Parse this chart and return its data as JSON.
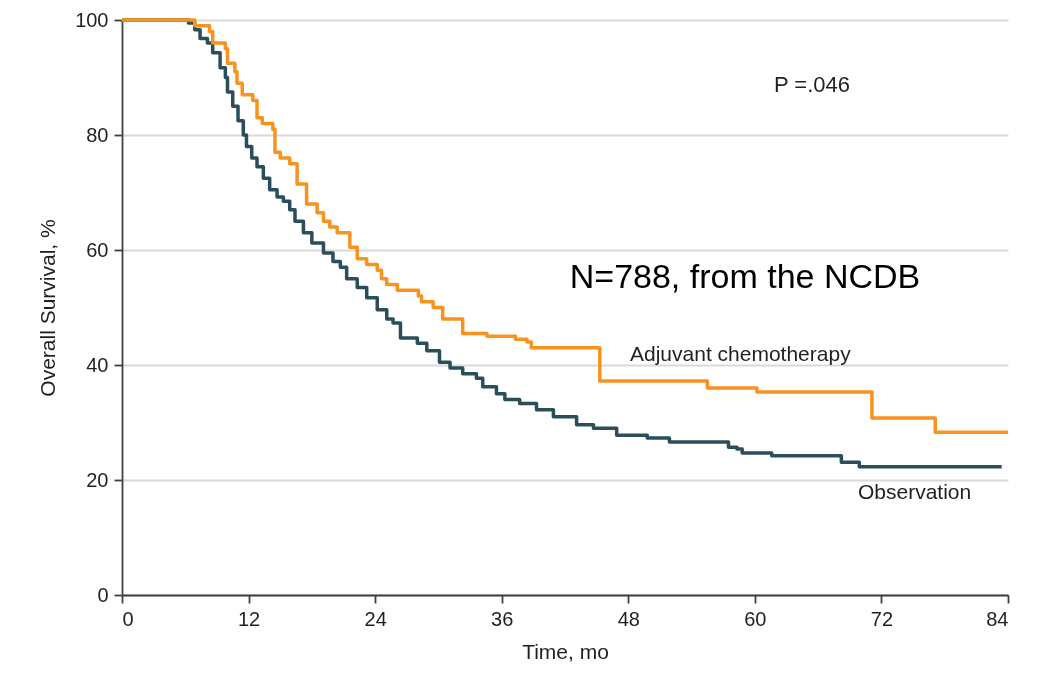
{
  "chart_data": {
    "type": "step",
    "xlabel": "Time, mo",
    "ylabel": "Overall Survival, %",
    "xlim": [
      0,
      84
    ],
    "xticks": [
      0,
      12,
      24,
      36,
      48,
      60,
      72,
      84
    ],
    "ylim": [
      0,
      100
    ],
    "yticks": [
      0,
      20,
      40,
      60,
      80,
      100
    ],
    "grid": "y",
    "annotations": [
      "P =.046",
      "N=788, from the NCDB"
    ],
    "series": [
      {
        "name": "Observation",
        "color": "#2b4f5a",
        "x": [
          0,
          6.3,
          6.9,
          7.4,
          8.1,
          8.6,
          9.3,
          9.8,
          10.0,
          10.5,
          11.0,
          11.5,
          11.8,
          12.3,
          12.8,
          13.4,
          14.0,
          14.7,
          15.3,
          15.9,
          16.4,
          17.2,
          18.0,
          19.1,
          20.0,
          20.7,
          21.3,
          22.3,
          23.2,
          24.2,
          25.1,
          25.7,
          26.4,
          28.0,
          28.9,
          30.1,
          31.1,
          32.3,
          33.6,
          34.2,
          35.5,
          36.3,
          37.7,
          39.3,
          40.9,
          43.1,
          44.7,
          46.9,
          49.8,
          51.9,
          57.5,
          58.3,
          58.8,
          61.6,
          68.2,
          69.9,
          83.4
        ],
        "values": [
          100,
          99.5,
          98.3,
          96.8,
          96,
          94.3,
          91.7,
          90,
          87.5,
          85,
          82.5,
          80,
          78,
          76,
          74.5,
          72.5,
          70.5,
          69.2,
          68.5,
          67,
          65,
          63,
          61.2,
          59.5,
          58,
          57,
          55,
          53.5,
          51.7,
          49.6,
          48,
          47.3,
          44.7,
          43.8,
          42.5,
          40.5,
          39.5,
          38.5,
          37.7,
          36.2,
          35,
          34,
          33.3,
          32.2,
          31,
          29.6,
          29,
          27.8,
          27.3,
          26.6,
          25.7,
          25.4,
          24.7,
          24.2,
          23.1,
          22.3,
          22.3
        ]
      },
      {
        "name": "Adjuvant chemotherapy",
        "color": "#f7931e",
        "x": [
          0,
          6.9,
          8.3,
          8.6,
          9.8,
          10.0,
          10.7,
          10.9,
          11.4,
          12.4,
          12.8,
          13.3,
          14.3,
          14.5,
          15.0,
          15.9,
          16.6,
          17.5,
          18.5,
          19.1,
          19.7,
          20.4,
          21.6,
          22.3,
          23.2,
          24.2,
          24.6,
          25.1,
          26.1,
          28.1,
          28.4,
          29.5,
          30.4,
          32.3,
          34.6,
          37.3,
          38.4,
          38.8,
          45.3,
          55.5,
          60.2,
          71.1,
          77.1,
          84
        ],
        "values": [
          100,
          99,
          98,
          96,
          95,
          92.5,
          91,
          89,
          87,
          86,
          83,
          82,
          81,
          77,
          76,
          75,
          71.5,
          68,
          66.5,
          65,
          64,
          63,
          60.5,
          58.5,
          57.5,
          56.5,
          55,
          54,
          53,
          52,
          51,
          50,
          48,
          45.5,
          45,
          44.5,
          44,
          43,
          37.2,
          36,
          35.3,
          30.8,
          28.3,
          28.3
        ]
      }
    ]
  }
}
